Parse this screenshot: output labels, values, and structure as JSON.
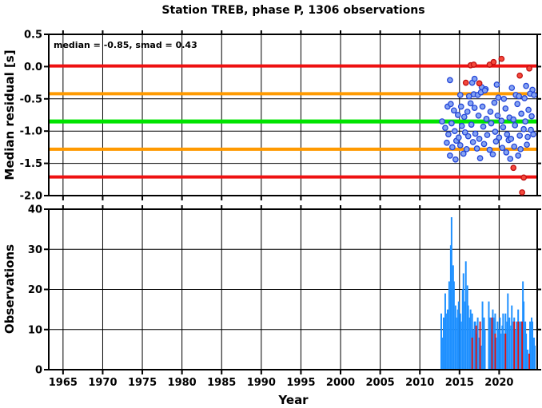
{
  "title": "Station TREB, phase P, 1306 observations",
  "annotation": "median = -0.85, smad = 0.43",
  "stats": {
    "median": -0.85,
    "smad": 0.43
  },
  "colors": {
    "histogram_blue": "#1e90ff",
    "histogram_red": "#e01010",
    "marker_blue_fill": "#85a3f2",
    "marker_blue_stroke": "#2446d8",
    "marker_red_fill": "#f4493c",
    "marker_red_stroke": "#c01010",
    "line_red": "#ee1111",
    "line_orange": "#ff9a00",
    "line_green": "#00e400"
  },
  "chart_data": [
    {
      "type": "scatter",
      "name": "median-residual-panel",
      "title": "Station TREB, phase P, 1306 observations",
      "xlabel": "Year",
      "ylabel": "Median residual [s]",
      "xlim": [
        1963.2,
        2024.8
      ],
      "ylim": [
        -2.0,
        0.5
      ],
      "grid": true,
      "x_ticks": [
        1965,
        1970,
        1975,
        1980,
        1985,
        1990,
        1995,
        2000,
        2005,
        2010,
        2015,
        2020
      ],
      "x_tick_labels": [
        "1965",
        "1970",
        "1975",
        "1980",
        "1985",
        "1990",
        "1995",
        "2000",
        "2005",
        "2010",
        "2015",
        "2020"
      ],
      "y_ticks": [
        0.5,
        0.0,
        -0.5,
        -1.0,
        -1.5,
        -2.0
      ],
      "y_tick_labels": [
        "0.5",
        "0.0",
        "-0.5",
        "-1.0",
        "-1.5",
        "-2.0"
      ],
      "annotation": "median = -0.85, smad = 0.43",
      "hlines": [
        {
          "name": "upper-red-line",
          "y": 0.01,
          "color": "#ee1111",
          "width": 4
        },
        {
          "name": "upper-orange-line",
          "y": -0.42,
          "color": "#ff9a00",
          "width": 4
        },
        {
          "name": "median-green-line",
          "y": -0.85,
          "color": "#00e400",
          "width": 5
        },
        {
          "name": "lower-orange-line",
          "y": -1.28,
          "color": "#ff9a00",
          "width": 4
        },
        {
          "name": "lower-red-line",
          "y": -1.71,
          "color": "#ee1111",
          "width": 4
        }
      ],
      "series": [
        {
          "name": "median-residuals",
          "marker": "circle",
          "fill": "#85a3f2",
          "stroke": "#2446d8",
          "points": [
            [
              2013.8,
              -0.21
            ],
            [
              2016.6,
              -0.25
            ],
            [
              2016.9,
              -0.19
            ],
            [
              2017.8,
              -0.32
            ],
            [
              2018.3,
              -0.35
            ],
            [
              2019.7,
              -0.28
            ],
            [
              2021.6,
              -0.33
            ],
            [
              2023.4,
              -0.3
            ],
            [
              2024.2,
              -0.36
            ],
            [
              2015.1,
              -0.44
            ],
            [
              2016.2,
              -0.46
            ],
            [
              2016.8,
              -0.43
            ],
            [
              2017.3,
              -0.44
            ],
            [
              2017.7,
              -0.4
            ],
            [
              2018.2,
              -0.37
            ],
            [
              2019.9,
              -0.48
            ],
            [
              2020.6,
              -0.5
            ],
            [
              2022.1,
              -0.44
            ],
            [
              2022.5,
              -0.46
            ],
            [
              2023.2,
              -0.49
            ],
            [
              2023.9,
              -0.42
            ],
            [
              2024.4,
              -0.44
            ],
            [
              2012.8,
              -0.85
            ],
            [
              2013.2,
              -0.95
            ],
            [
              2013.4,
              -1.18
            ],
            [
              2013.5,
              -0.62
            ],
            [
              2013.6,
              -1.05
            ],
            [
              2013.8,
              -1.38
            ],
            [
              2013.9,
              -0.58
            ],
            [
              2014.0,
              -0.88
            ],
            [
              2014.1,
              -1.25
            ],
            [
              2014.3,
              -0.68
            ],
            [
              2014.4,
              -1.0
            ],
            [
              2014.5,
              -1.44
            ],
            [
              2014.6,
              -1.15
            ],
            [
              2014.8,
              -0.75
            ],
            [
              2014.9,
              -1.1
            ],
            [
              2015.1,
              -1.22
            ],
            [
              2015.2,
              -0.62
            ],
            [
              2015.3,
              -0.92
            ],
            [
              2015.5,
              -1.35
            ],
            [
              2015.6,
              -0.78
            ],
            [
              2015.7,
              -1.02
            ],
            [
              2015.9,
              -1.28
            ],
            [
              2016.0,
              -0.7
            ],
            [
              2016.1,
              -1.08
            ],
            [
              2016.4,
              -0.57
            ],
            [
              2016.5,
              -0.9
            ],
            [
              2016.7,
              -1.17
            ],
            [
              2016.9,
              -0.64
            ],
            [
              2017.0,
              -1.04
            ],
            [
              2017.2,
              -1.27
            ],
            [
              2017.4,
              -0.76
            ],
            [
              2017.5,
              -1.12
            ],
            [
              2017.6,
              -1.42
            ],
            [
              2017.9,
              -0.62
            ],
            [
              2018.0,
              -0.93
            ],
            [
              2018.1,
              -1.2
            ],
            [
              2018.4,
              -0.81
            ],
            [
              2018.5,
              -1.06
            ],
            [
              2018.8,
              -1.29
            ],
            [
              2018.9,
              -0.7
            ],
            [
              2019.0,
              -0.88
            ],
            [
              2019.2,
              -1.36
            ],
            [
              2019.4,
              -0.56
            ],
            [
              2019.5,
              -1.01
            ],
            [
              2019.6,
              -1.16
            ],
            [
              2019.8,
              -0.76
            ],
            [
              2020.0,
              -1.1
            ],
            [
              2020.3,
              -0.84
            ],
            [
              2020.4,
              -1.26
            ],
            [
              2020.5,
              -0.94
            ],
            [
              2020.8,
              -0.65
            ],
            [
              2020.9,
              -1.33
            ],
            [
              2021.0,
              -1.05
            ],
            [
              2021.2,
              -1.14
            ],
            [
              2021.3,
              -0.79
            ],
            [
              2021.4,
              -1.43
            ],
            [
              2021.5,
              -1.12
            ],
            [
              2021.8,
              -0.82
            ],
            [
              2021.9,
              -1.24
            ],
            [
              2022.0,
              -0.91
            ],
            [
              2022.3,
              -0.58
            ],
            [
              2022.4,
              -1.38
            ],
            [
              2022.6,
              -1.07
            ],
            [
              2022.7,
              -1.28
            ],
            [
              2022.8,
              -0.73
            ],
            [
              2023.1,
              -0.97
            ],
            [
              2023.3,
              -0.85
            ],
            [
              2023.5,
              -1.21
            ],
            [
              2023.6,
              -1.09
            ],
            [
              2023.7,
              -0.67
            ],
            [
              2024.0,
              -0.98
            ],
            [
              2024.1,
              -0.77
            ],
            [
              2024.3,
              -1.05
            ]
          ]
        },
        {
          "name": "outlier-residuals",
          "marker": "circle",
          "fill": "#f4493c",
          "stroke": "#c01010",
          "points": [
            [
              2015.8,
              -0.25
            ],
            [
              2016.4,
              0.02
            ],
            [
              2016.8,
              0.03
            ],
            [
              2017.5,
              -0.26
            ],
            [
              2018.8,
              0.03
            ],
            [
              2019.3,
              0.07
            ],
            [
              2020.3,
              0.12
            ],
            [
              2021.8,
              -1.57
            ],
            [
              2022.6,
              -0.14
            ],
            [
              2022.9,
              -1.95
            ],
            [
              2023.1,
              -1.72
            ],
            [
              2023.8,
              -0.03
            ]
          ]
        }
      ]
    },
    {
      "type": "bar",
      "name": "observations-panel",
      "xlabel": "Year",
      "ylabel": "Observations",
      "xlim": [
        1963.2,
        2024.8
      ],
      "ylim": [
        0,
        40
      ],
      "grid": true,
      "x_ticks": [
        1965,
        1970,
        1975,
        1980,
        1985,
        1990,
        1995,
        2000,
        2005,
        2010,
        2015,
        2020
      ],
      "x_tick_labels": [
        "1965",
        "1970",
        "1975",
        "1980",
        "1985",
        "1990",
        "1995",
        "2000",
        "2005",
        "2010",
        "2015",
        "2020"
      ],
      "y_ticks": [
        0,
        10,
        20,
        30,
        40
      ],
      "y_tick_labels": [
        "0",
        "10",
        "20",
        "30",
        "40"
      ],
      "series": [
        {
          "name": "observations",
          "color": "#1e90ff",
          "bar_width": 0.2,
          "bars": [
            [
              2012.7,
              14
            ],
            [
              2012.8,
              8
            ],
            [
              2013.0,
              13
            ],
            [
              2013.2,
              19
            ],
            [
              2013.3,
              14
            ],
            [
              2013.5,
              15
            ],
            [
              2013.7,
              22
            ],
            [
              2013.9,
              31
            ],
            [
              2014.0,
              38
            ],
            [
              2014.2,
              26
            ],
            [
              2014.3,
              22
            ],
            [
              2014.5,
              16
            ],
            [
              2014.6,
              13
            ],
            [
              2014.8,
              15
            ],
            [
              2014.9,
              17
            ],
            [
              2015.1,
              14
            ],
            [
              2015.2,
              12
            ],
            [
              2015.4,
              20
            ],
            [
              2015.5,
              24
            ],
            [
              2015.7,
              17
            ],
            [
              2015.8,
              27
            ],
            [
              2016.0,
              21
            ],
            [
              2016.1,
              16
            ],
            [
              2016.3,
              13
            ],
            [
              2016.4,
              15
            ],
            [
              2016.6,
              14
            ],
            [
              2016.7,
              10
            ],
            [
              2016.9,
              12
            ],
            [
              2017.0,
              12
            ],
            [
              2017.2,
              9
            ],
            [
              2017.3,
              13
            ],
            [
              2017.5,
              8
            ],
            [
              2017.6,
              12
            ],
            [
              2017.8,
              6
            ],
            [
              2017.9,
              17
            ],
            [
              2018.1,
              13
            ],
            [
              2018.2,
              10
            ],
            [
              2018.7,
              17
            ],
            [
              2018.9,
              13
            ],
            [
              2019.0,
              10
            ],
            [
              2019.2,
              15
            ],
            [
              2019.3,
              13
            ],
            [
              2019.5,
              14
            ],
            [
              2019.6,
              8
            ],
            [
              2019.8,
              12
            ],
            [
              2019.9,
              10
            ],
            [
              2020.1,
              13
            ],
            [
              2020.2,
              9
            ],
            [
              2020.4,
              11
            ],
            [
              2020.5,
              14
            ],
            [
              2020.7,
              9
            ],
            [
              2020.8,
              14
            ],
            [
              2021.0,
              12
            ],
            [
              2021.1,
              19
            ],
            [
              2021.3,
              13
            ],
            [
              2021.5,
              11
            ],
            [
              2021.6,
              16
            ],
            [
              2021.8,
              12
            ],
            [
              2021.9,
              13
            ],
            [
              2022.1,
              10
            ],
            [
              2022.2,
              12
            ],
            [
              2022.4,
              15
            ],
            [
              2022.5,
              12
            ],
            [
              2022.7,
              12
            ],
            [
              2022.8,
              12
            ],
            [
              2023.0,
              22
            ],
            [
              2023.1,
              17
            ],
            [
              2023.3,
              12
            ],
            [
              2023.4,
              9
            ],
            [
              2023.6,
              5
            ],
            [
              2023.9,
              12
            ],
            [
              2024.1,
              13
            ],
            [
              2024.2,
              12
            ],
            [
              2024.4,
              8
            ],
            [
              2024.5,
              6
            ]
          ]
        },
        {
          "name": "flagged-observations",
          "color": "#e01010",
          "bar_width": 0.18,
          "bars": [
            [
              2016.6,
              8
            ],
            [
              2017.1,
              11
            ],
            [
              2017.6,
              12
            ],
            [
              2019.1,
              13
            ],
            [
              2019.5,
              9
            ],
            [
              2020.8,
              9
            ],
            [
              2021.9,
              12
            ],
            [
              2022.4,
              12
            ],
            [
              2022.9,
              12
            ],
            [
              2023.8,
              4
            ]
          ]
        }
      ]
    }
  ]
}
